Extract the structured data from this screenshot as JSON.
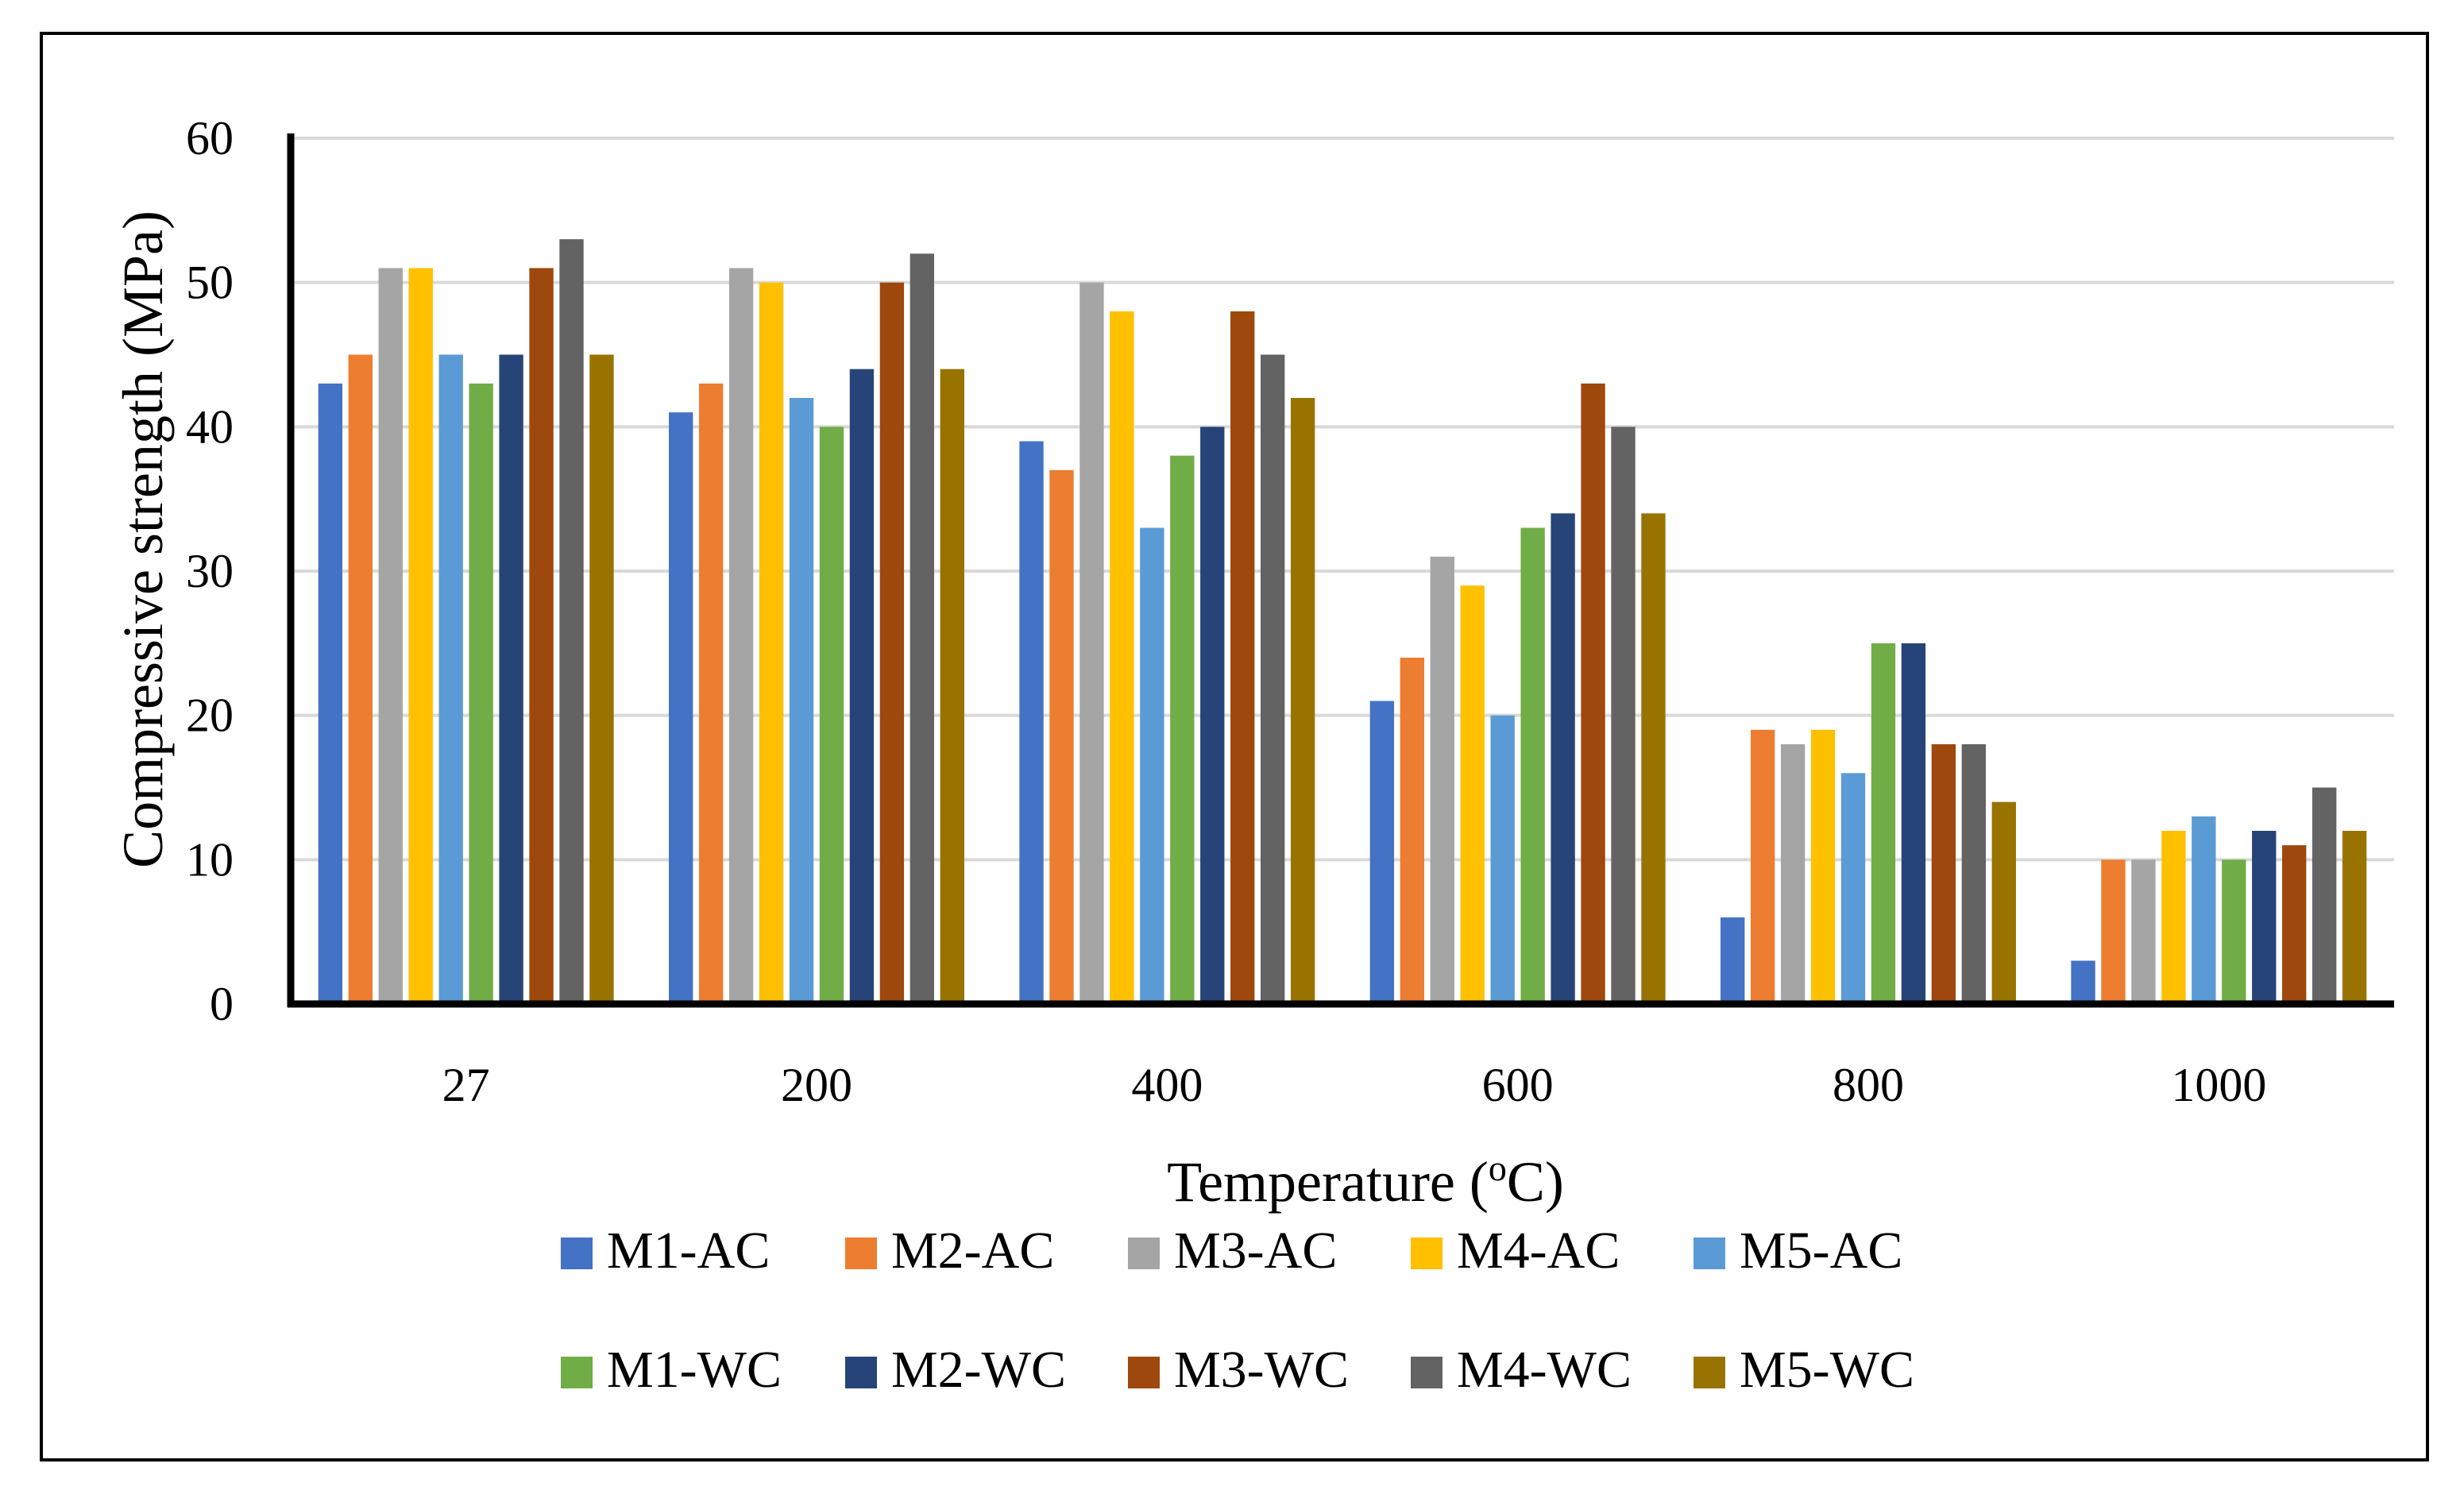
{
  "chart_data": {
    "type": "bar",
    "title": "",
    "xlabel": "Temperature (",
    "xlabel_superscript": "o",
    "xlabel_suffix": "C)",
    "ylabel": "Compressive strength (MPa)",
    "ylim": [
      0,
      60
    ],
    "yticks": [
      0,
      10,
      20,
      30,
      40,
      50,
      60
    ],
    "grid": true,
    "legend_position": "bottom",
    "categories": [
      "27",
      "200",
      "400",
      "600",
      "800",
      "1000"
    ],
    "series": [
      {
        "name": "M1-AC",
        "color": "#4472C4",
        "values": [
          43,
          41,
          39,
          21,
          6,
          3
        ]
      },
      {
        "name": "M2-AC",
        "color": "#ED7D31",
        "values": [
          45,
          43,
          37,
          24,
          19,
          10
        ]
      },
      {
        "name": "M3-AC",
        "color": "#A5A5A5",
        "values": [
          51,
          51,
          50,
          31,
          18,
          10
        ]
      },
      {
        "name": "M4-AC",
        "color": "#FFC000",
        "values": [
          51,
          50,
          48,
          29,
          19,
          12
        ]
      },
      {
        "name": "M5-AC",
        "color": "#5B9BD5",
        "values": [
          45,
          42,
          33,
          20,
          16,
          13
        ]
      },
      {
        "name": "M1-WC",
        "color": "#70AD47",
        "values": [
          43,
          40,
          38,
          33,
          25,
          10
        ]
      },
      {
        "name": "M2-WC",
        "color": "#264478",
        "values": [
          45,
          44,
          40,
          34,
          25,
          12
        ]
      },
      {
        "name": "M3-WC",
        "color": "#9E480E",
        "values": [
          51,
          50,
          48,
          43,
          18,
          11
        ]
      },
      {
        "name": "M4-WC",
        "color": "#636363",
        "values": [
          53,
          52,
          45,
          40,
          18,
          15
        ]
      },
      {
        "name": "M5-WC",
        "color": "#997300",
        "values": [
          45,
          44,
          42,
          34,
          14,
          12
        ]
      }
    ]
  }
}
